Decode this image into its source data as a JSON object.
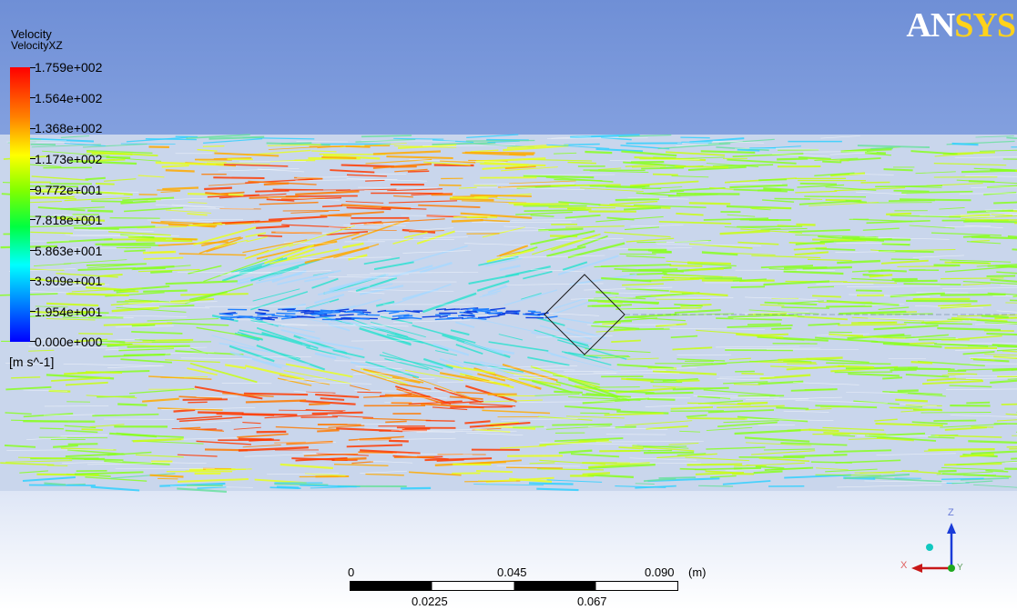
{
  "legend": {
    "title": "Velocity",
    "subtitle": "VelocityXZ",
    "ticks": [
      "1.759e+002",
      "1.564e+002",
      "1.368e+002",
      "1.173e+002",
      "9.772e+001",
      "7.818e+001",
      "5.863e+001",
      "3.909e+001",
      "1.954e+001",
      "0.000e+000"
    ],
    "units": "[m s^-1]"
  },
  "logo": {
    "part1": "AN",
    "part2": "SYS"
  },
  "scale": {
    "top_labels": [
      "0",
      "0.045",
      "0.090"
    ],
    "unit": "(m)",
    "bottom_labels": [
      "0.0225",
      "0.067"
    ]
  },
  "triad": {
    "x": "X",
    "y": "Y",
    "z": "Z"
  },
  "colors": {
    "accent_red": "#ff3a00",
    "accent_green": "#66ff00",
    "background": "#8aa6e2"
  }
}
